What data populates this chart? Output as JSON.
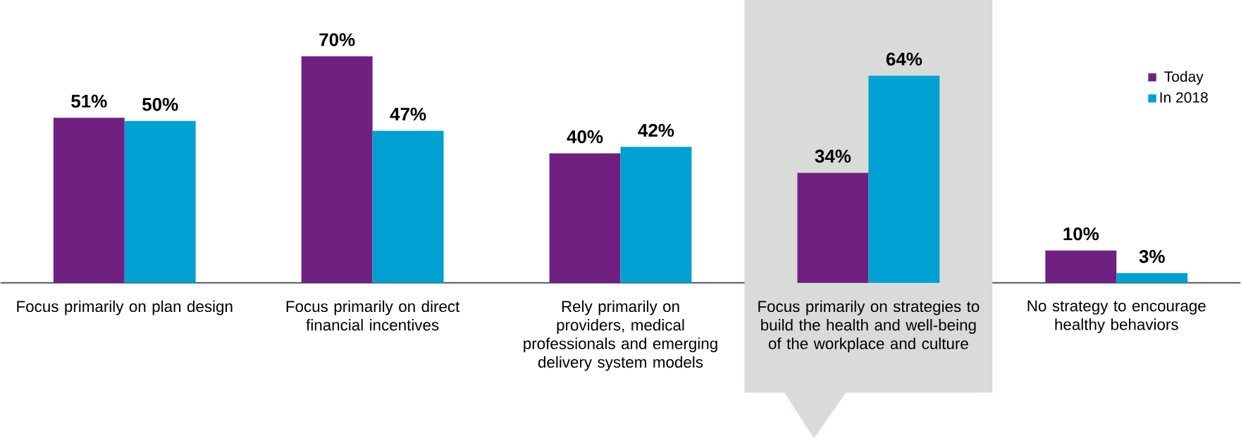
{
  "chart_data": {
    "type": "bar",
    "relative": false,
    "categories": [
      "Focus primarily on plan design",
      "Focus primarily on direct financial incentives",
      "Rely primarily on providers, medical professionals and emerging delivery system models",
      "Focus primarily on strategies to build the health and well-being of the workplace and culture",
      "No strategy to encourage healthy behaviors"
    ],
    "series": [
      {
        "name": "Today",
        "color": "#6f2080",
        "values": [
          51,
          70,
          40,
          34,
          10
        ],
        "value_labels": [
          "51%",
          "70%",
          "40%",
          "34%",
          "10%"
        ]
      },
      {
        "name": "In 2018",
        "color": "#00a0d2",
        "values": [
          50,
          47,
          42,
          64,
          3
        ],
        "value_labels": [
          "50%",
          "47%",
          "42%",
          "64%",
          "3%"
        ]
      }
    ],
    "bands": [
      {
        "axis": "x",
        "from": "Focus primarily on strategies to build the health and well-being of the workplace and culture",
        "to": "Focus primarily on strategies to build the health and well-being of the workplace and culture",
        "color": "#d9dbd8"
      }
    ],
    "legend": "top right"
  }
}
